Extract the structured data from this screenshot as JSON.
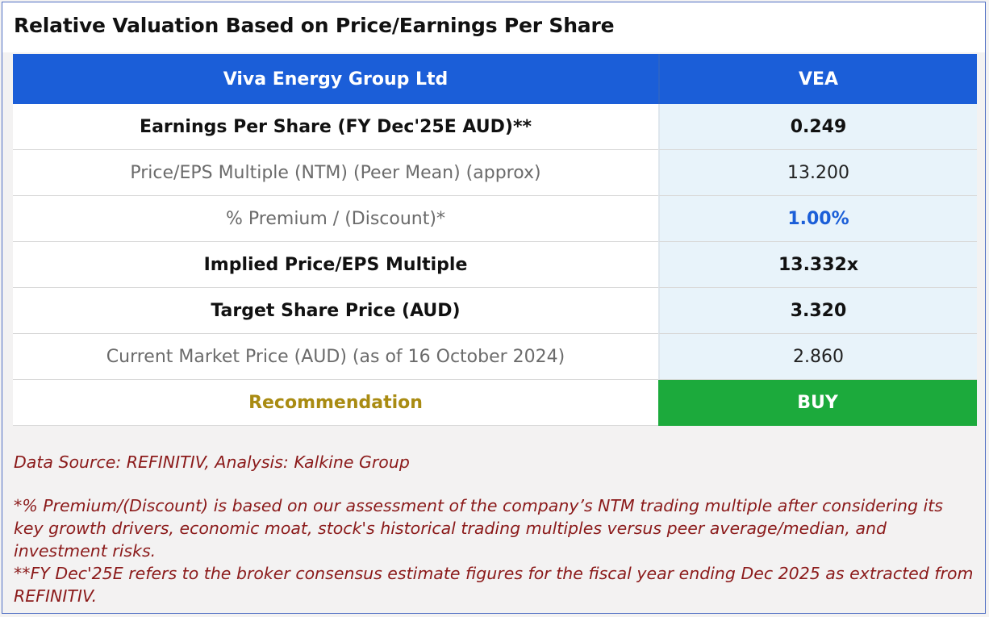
{
  "title": "Relative Valuation Based on Price/Earnings Per Share",
  "table": {
    "header": {
      "company": "Viva Energy Group Ltd",
      "ticker": "VEA"
    },
    "rows": [
      {
        "label": "Earnings Per Share (FY Dec'25E AUD)**",
        "value": "0.249",
        "style": "bold"
      },
      {
        "label": "Price/EPS Multiple (NTM) (Peer Mean) (approx)",
        "value": "13.200",
        "style": "light"
      },
      {
        "label": "% Premium / (Discount)*",
        "value": "1.00%",
        "style": "light-blue"
      },
      {
        "label": "Implied Price/EPS Multiple",
        "value": "13.332x",
        "style": "bold"
      },
      {
        "label": "Target Share Price (AUD)",
        "value": "3.320",
        "style": "bold"
      },
      {
        "label": "Current Market Price (AUD) (as of 16 October 2024)",
        "value": "2.860",
        "style": "light"
      }
    ],
    "recommendation": {
      "label": "Recommendation",
      "value": "BUY"
    }
  },
  "notes": {
    "source": "Data Source: REFINITIV, Analysis: Kalkine Group",
    "premium_note": "*% Premium/(Discount) is based on our assessment of the company’s NTM trading multiple after considering its key growth drivers, economic moat, stock's historical trading multiples versus peer average/median, and investment risks.",
    "fy_note": "**FY Dec'25E refers to the broker consensus estimate figures for the fiscal year ending Dec 2025 as extracted from REFINITIV."
  },
  "colors": {
    "header_blue": "#1b5ed8",
    "buy_green": "#1caa3c",
    "recommendation_gold": "#a98b12",
    "notes_red": "#8b1a1a"
  }
}
